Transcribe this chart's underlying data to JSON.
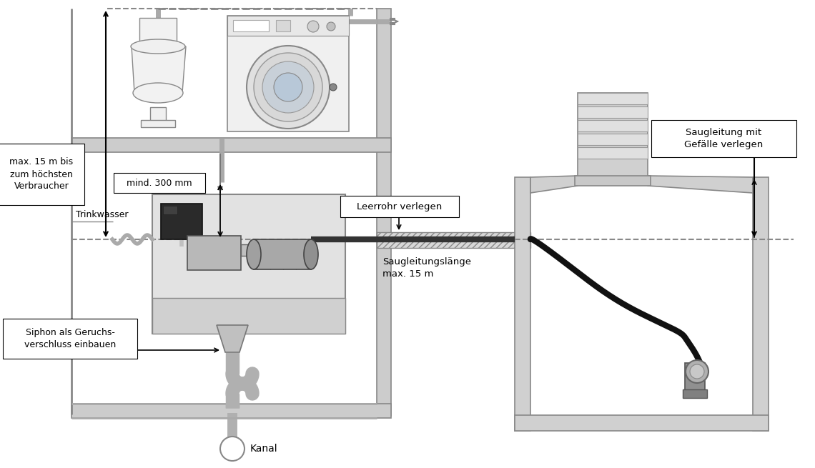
{
  "bg_color": "#ffffff",
  "wall_fc": "#cccccc",
  "wall_ec": "#888888",
  "wall_lw": 1.0,
  "dark_ec": "#555555",
  "labels": {
    "max_15m": "max. 15 m bis\nzum höchsten\nVerbraucher",
    "mind_300": "mind. 300 mm",
    "trinkwasser": "Trinkwasser",
    "leerrohr": "Leerrohr verlegen",
    "saugleitungslaenge": "Saugleitungslänge\nmax. 15 m",
    "saugleitung": "Saugleitung mit\nGefälle verlegen",
    "siphon": "Siphon als Geruchs-\nverschluss einbauen",
    "kanal": "Kanal"
  }
}
